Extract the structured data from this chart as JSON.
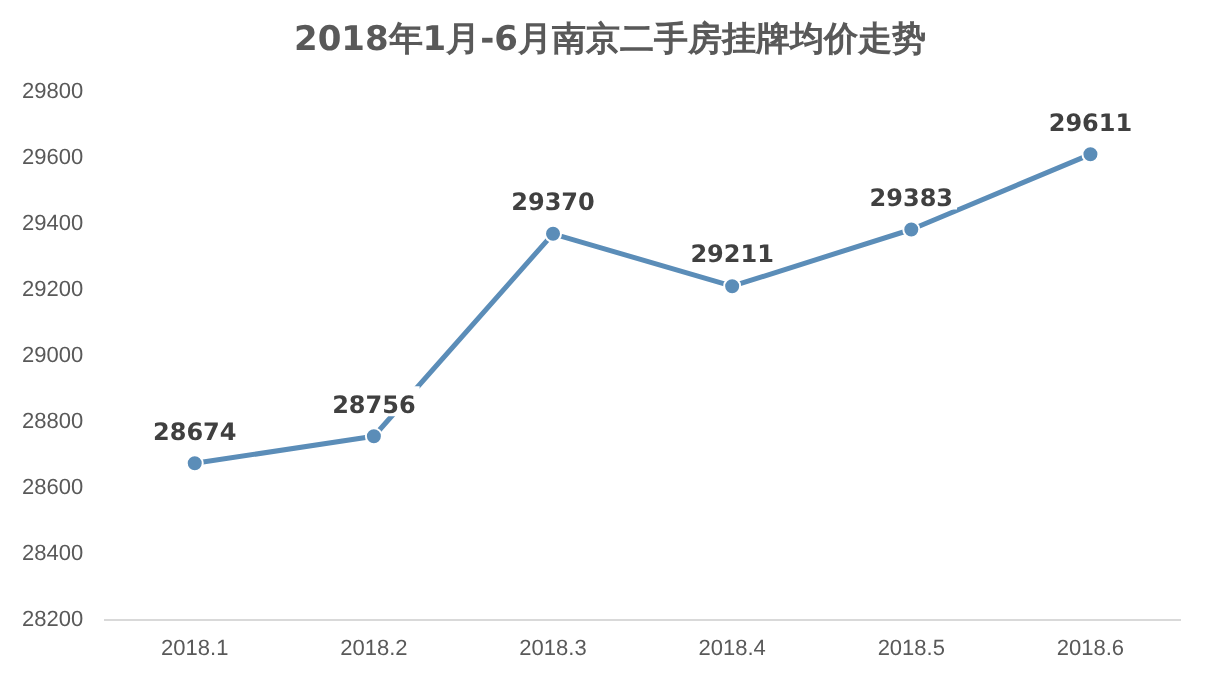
{
  "chart_data": {
    "type": "line",
    "title": "2018年1月-6月南京二手房挂牌均价走势",
    "categories": [
      "2018.1",
      "2018.2",
      "2018.3",
      "2018.4",
      "2018.5",
      "2018.6"
    ],
    "series": [
      {
        "color": "#5b8db8",
        "values": [
          28674,
          28756,
          29370,
          29211,
          29383,
          29611
        ]
      }
    ],
    "ylim": [
      28200,
      29800
    ],
    "yticks": [
      28200,
      28400,
      28600,
      28800,
      29000,
      29200,
      29400,
      29600,
      29800
    ],
    "grid": false,
    "legend": false,
    "marker": "circle",
    "line_style": "solid",
    "data_labels": true
  }
}
